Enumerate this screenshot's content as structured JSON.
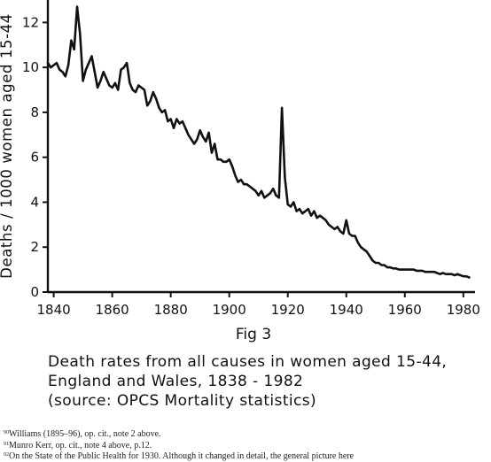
{
  "chart_data": {
    "type": "line",
    "title": "",
    "xlabel": "",
    "ylabel": "Deaths / 1000 women aged 15-44",
    "xlim": [
      1838,
      1984
    ],
    "ylim": [
      0,
      13
    ],
    "xticks": [
      1840,
      1860,
      1880,
      1900,
      1920,
      1940,
      1960,
      1980
    ],
    "yticks": [
      0,
      2,
      4,
      6,
      8,
      10,
      12
    ],
    "grid": false,
    "legend": "none",
    "series": [
      {
        "name": "",
        "points": [
          [
            1838,
            10.2
          ],
          [
            1839,
            10.0
          ],
          [
            1840,
            10.1
          ],
          [
            1841,
            10.2
          ],
          [
            1842,
            9.9
          ],
          [
            1843,
            9.8
          ],
          [
            1844,
            9.6
          ],
          [
            1845,
            10.1
          ],
          [
            1846,
            11.2
          ],
          [
            1847,
            10.8
          ],
          [
            1848,
            12.7
          ],
          [
            1849,
            11.5
          ],
          [
            1850,
            9.4
          ],
          [
            1851,
            9.9
          ],
          [
            1852,
            10.2
          ],
          [
            1853,
            10.5
          ],
          [
            1854,
            9.8
          ],
          [
            1855,
            9.1
          ],
          [
            1856,
            9.4
          ],
          [
            1857,
            9.8
          ],
          [
            1858,
            9.5
          ],
          [
            1859,
            9.2
          ],
          [
            1860,
            9.1
          ],
          [
            1861,
            9.3
          ],
          [
            1862,
            9.0
          ],
          [
            1863,
            9.9
          ],
          [
            1864,
            10.0
          ],
          [
            1865,
            10.2
          ],
          [
            1866,
            9.3
          ],
          [
            1867,
            9.0
          ],
          [
            1868,
            8.9
          ],
          [
            1869,
            9.2
          ],
          [
            1870,
            9.1
          ],
          [
            1871,
            9.0
          ],
          [
            1872,
            8.3
          ],
          [
            1873,
            8.5
          ],
          [
            1874,
            8.9
          ],
          [
            1875,
            8.6
          ],
          [
            1876,
            8.2
          ],
          [
            1877,
            8.0
          ],
          [
            1878,
            8.1
          ],
          [
            1879,
            7.6
          ],
          [
            1880,
            7.7
          ],
          [
            1881,
            7.3
          ],
          [
            1882,
            7.7
          ],
          [
            1883,
            7.5
          ],
          [
            1884,
            7.6
          ],
          [
            1885,
            7.3
          ],
          [
            1886,
            7.0
          ],
          [
            1887,
            6.8
          ],
          [
            1888,
            6.6
          ],
          [
            1889,
            6.8
          ],
          [
            1890,
            7.2
          ],
          [
            1891,
            6.9
          ],
          [
            1892,
            6.7
          ],
          [
            1893,
            7.1
          ],
          [
            1894,
            6.2
          ],
          [
            1895,
            6.6
          ],
          [
            1896,
            5.9
          ],
          [
            1897,
            5.9
          ],
          [
            1898,
            5.8
          ],
          [
            1899,
            5.8
          ],
          [
            1900,
            5.9
          ],
          [
            1901,
            5.6
          ],
          [
            1902,
            5.2
          ],
          [
            1903,
            4.9
          ],
          [
            1904,
            5.0
          ],
          [
            1905,
            4.8
          ],
          [
            1906,
            4.8
          ],
          [
            1907,
            4.7
          ],
          [
            1908,
            4.6
          ],
          [
            1909,
            4.5
          ],
          [
            1910,
            4.3
          ],
          [
            1911,
            4.5
          ],
          [
            1912,
            4.2
          ],
          [
            1913,
            4.3
          ],
          [
            1914,
            4.4
          ],
          [
            1915,
            4.6
          ],
          [
            1916,
            4.3
          ],
          [
            1917,
            4.2
          ],
          [
            1918,
            8.2
          ],
          [
            1919,
            5.1
          ],
          [
            1920,
            3.9
          ],
          [
            1921,
            3.8
          ],
          [
            1922,
            4.0
          ],
          [
            1923,
            3.6
          ],
          [
            1924,
            3.7
          ],
          [
            1925,
            3.5
          ],
          [
            1926,
            3.6
          ],
          [
            1927,
            3.7
          ],
          [
            1928,
            3.4
          ],
          [
            1929,
            3.6
          ],
          [
            1930,
            3.3
          ],
          [
            1931,
            3.4
          ],
          [
            1932,
            3.3
          ],
          [
            1933,
            3.2
          ],
          [
            1934,
            3.0
          ],
          [
            1935,
            2.9
          ],
          [
            1936,
            2.8
          ],
          [
            1937,
            2.9
          ],
          [
            1938,
            2.7
          ],
          [
            1939,
            2.6
          ],
          [
            1940,
            3.2
          ],
          [
            1941,
            2.6
          ],
          [
            1942,
            2.5
          ],
          [
            1943,
            2.5
          ],
          [
            1944,
            2.2
          ],
          [
            1945,
            2.0
          ],
          [
            1946,
            1.9
          ],
          [
            1947,
            1.8
          ],
          [
            1948,
            1.6
          ],
          [
            1949,
            1.4
          ],
          [
            1950,
            1.3
          ],
          [
            1951,
            1.3
          ],
          [
            1952,
            1.2
          ],
          [
            1953,
            1.2
          ],
          [
            1954,
            1.1
          ],
          [
            1955,
            1.1
          ],
          [
            1956,
            1.05
          ],
          [
            1957,
            1.05
          ],
          [
            1958,
            1.0
          ],
          [
            1959,
            1.0
          ],
          [
            1960,
            1.0
          ],
          [
            1961,
            1.0
          ],
          [
            1962,
            1.0
          ],
          [
            1963,
            1.0
          ],
          [
            1964,
            0.95
          ],
          [
            1965,
            0.95
          ],
          [
            1966,
            0.95
          ],
          [
            1967,
            0.9
          ],
          [
            1968,
            0.9
          ],
          [
            1969,
            0.9
          ],
          [
            1970,
            0.9
          ],
          [
            1971,
            0.85
          ],
          [
            1972,
            0.8
          ],
          [
            1973,
            0.85
          ],
          [
            1974,
            0.8
          ],
          [
            1975,
            0.8
          ],
          [
            1976,
            0.8
          ],
          [
            1977,
            0.75
          ],
          [
            1978,
            0.8
          ],
          [
            1979,
            0.75
          ],
          [
            1980,
            0.7
          ],
          [
            1981,
            0.7
          ],
          [
            1982,
            0.65
          ]
        ]
      }
    ]
  },
  "figure": {
    "label": "Fig 3",
    "caption_lines": [
      "Death rates from all causes in women aged 15-44,",
      "England and Wales, 1838 - 1982",
      "(source: OPCS Mortality statistics)"
    ]
  },
  "footnotes": [
    {
      "num": "90",
      "text": "Williams (1895–96), op. cit., note 2 above."
    },
    {
      "num": "91",
      "text": "Munro Kerr, op. cit., note 4 above, p.12."
    },
    {
      "num": "92",
      "text": "On the State of the Public Health for 1930. Although it changed in detail, the general picture here"
    }
  ]
}
